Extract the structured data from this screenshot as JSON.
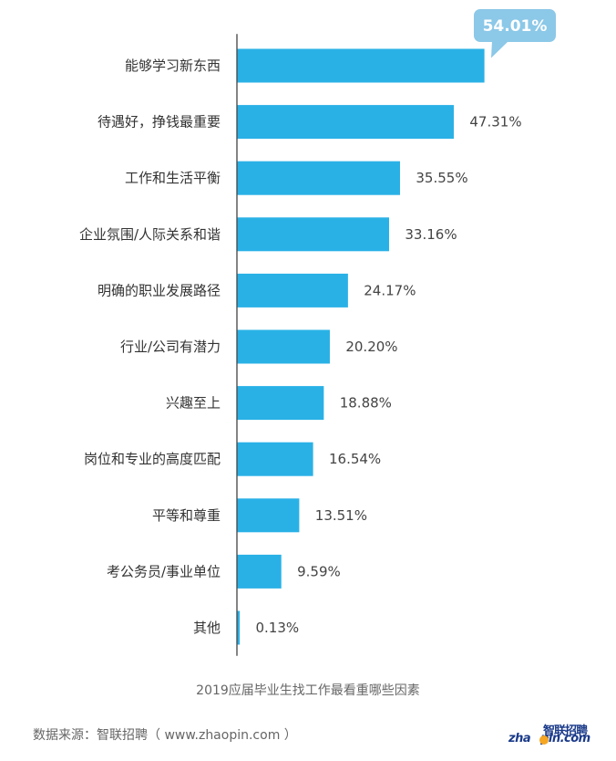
{
  "chart_data": {
    "type": "bar",
    "orientation": "horizontal",
    "categories": [
      "能够学习新东西",
      "待遇好，挣钱最重要",
      "工作和生活平衡",
      "企业氛围/人际关系和谐",
      "明确的职业发展路径",
      "行业/公司有潜力",
      "兴趣至上",
      "岗位和专业的高度匹配",
      "平等和尊重",
      "考公务员/事业单位",
      "其他"
    ],
    "values": [
      54.01,
      47.31,
      35.55,
      33.16,
      24.17,
      20.2,
      18.88,
      16.54,
      13.51,
      9.59,
      0.13
    ],
    "value_labels": [
      "54.01%",
      "47.31%",
      "35.55%",
      "33.16%",
      "24.17%",
      "20.20%",
      "18.88%",
      "16.54%",
      "13.51%",
      "9.59%",
      "0.13%"
    ],
    "highlight_index": 0,
    "title": "2019应届毕业生找工作最看重哪些因素",
    "xlim": [
      0,
      60
    ],
    "grid": false,
    "legend": "none",
    "colors": {
      "bar": "#29b1e6",
      "axis": "#333333",
      "callout": "#8cc8e8"
    }
  },
  "source": "数据来源：智联招聘（ www.zhaopin.com ）",
  "logo": {
    "cn": "智联招聘",
    "en_left": "zha",
    "en_right": "pin.com"
  }
}
